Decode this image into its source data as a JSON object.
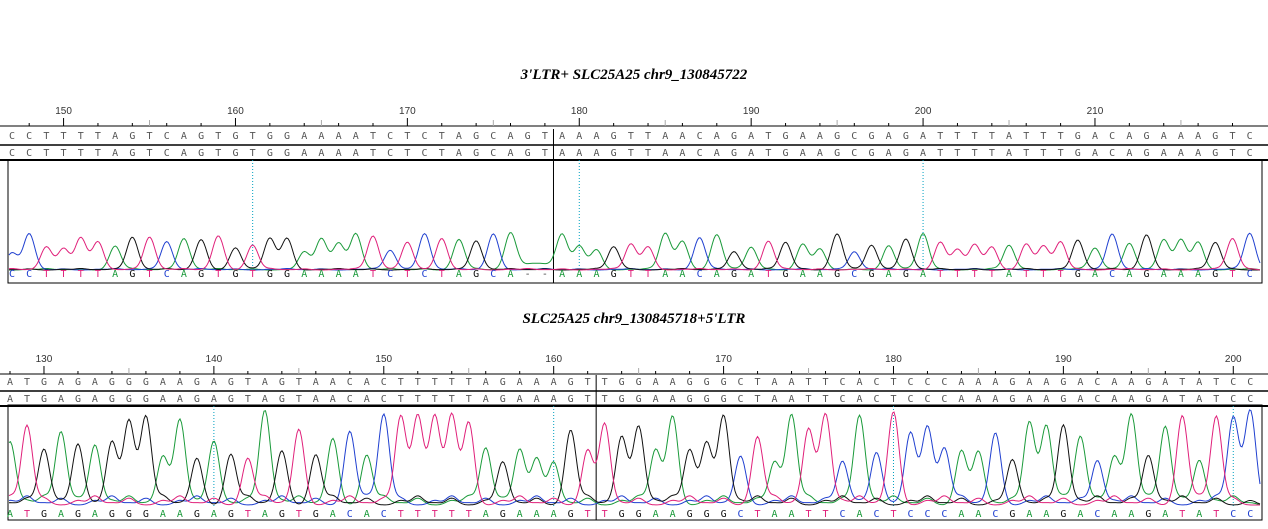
{
  "colors": {
    "A": "#1a9a3a",
    "C": "#2040d0",
    "G": "#111111",
    "T": "#e0207a",
    "gap": "#444444",
    "guide": "#00a0c0"
  },
  "chart_data": [
    {
      "type": "chromatogram",
      "title": "3'LTR+ SLC25A25  chr9_130845722",
      "start_position": 147,
      "tick_labels": [
        "150",
        "160",
        "170",
        "180",
        "190",
        "200",
        "210"
      ],
      "reference_segments": [
        "CCTTTTAGTCAGTGTGGAAAATCTCTAGCAGT",
        "AAAGTTAACAGATGAAGCGAGATTTTATTTGACAGAAAGTC"
      ],
      "consensus_segments": [
        "CCTTTTAGTCAGTGTGGAAAATCTCTAGCAGT",
        "AAAGTTAACAGATGAAGCGAGATTTTATTTGACAGAAAGTC"
      ],
      "trace_segments": [
        "CCTTTTAGTCAGTGTGGAAAATCTCTAGCA--",
        "AAAGTTAACAGATGAAGCGAGATTTTATTTGACAGAAAGTC"
      ]
    },
    {
      "type": "chromatogram",
      "title": "SLC25A25  chr9_130845718+5'LTR",
      "start_position": 128,
      "tick_labels": [
        "130",
        "140",
        "150",
        "160",
        "170",
        "180",
        "190",
        "200"
      ],
      "reference_segments": [
        "ATGAGAGGGAAGAGTAGTAACACTTTTTAGAAAGT",
        "TGGAAGGGCTAATTCACTCCCAAAGAAGACAAGATATCC"
      ],
      "consensus_segments": [
        "ATGAGAGGGAAGAGTAGTAACACTTTTTAGAAAGT",
        "TGGAAGGGCTAATTCACTCCCAAAGAAGACAAGATATCC"
      ],
      "trace_segments": [
        "ATGAGAGGGAAGAGTAGTGACACTTTTTAGAAAGT",
        "TGGAAGGGCTAATTCACTCCCAACGAAGACAAGATATCC"
      ]
    }
  ]
}
